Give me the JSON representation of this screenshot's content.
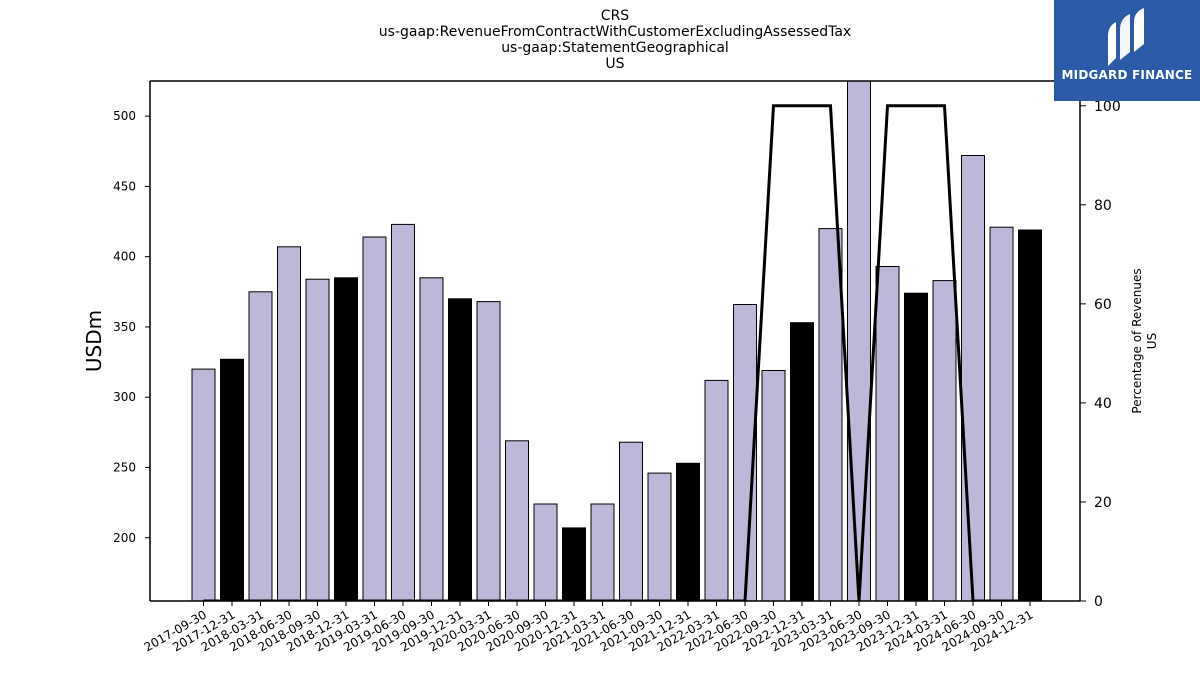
{
  "chart_data": {
    "type": "bar",
    "title_lines": [
      "CRS",
      "us-gaap:RevenueFromContractWithCustomerExcludingAssessedTax",
      "us-gaap:StatementGeographical",
      "US"
    ],
    "ylabel": "USDm",
    "y2label_lines": [
      "Percentage of Revenues",
      "US"
    ],
    "ylim": [
      155,
      525
    ],
    "yticks": [
      200,
      250,
      300,
      350,
      400,
      450,
      500
    ],
    "y2lim": [
      0,
      105
    ],
    "y2ticks": [
      0,
      20,
      40,
      60,
      80,
      100
    ],
    "categories": [
      "2017-09-30",
      "2017-12-31",
      "2018-03-31",
      "2018-06-30",
      "2018-09-30",
      "2018-12-31",
      "2019-03-31",
      "2019-06-30",
      "2019-09-30",
      "2019-12-31",
      "2020-03-31",
      "2020-06-30",
      "2020-09-30",
      "2020-12-31",
      "2021-03-31",
      "2021-06-30",
      "2021-09-30",
      "2021-12-31",
      "2022-03-31",
      "2022-06-30",
      "2022-09-30",
      "2022-12-31",
      "2023-03-31",
      "2023-06-30",
      "2023-09-30",
      "2023-12-31",
      "2024-03-31",
      "2024-06-30",
      "2024-09-30",
      "2024-12-31"
    ],
    "values": [
      320,
      327,
      375,
      407,
      384,
      385,
      414,
      423,
      385,
      370,
      368,
      269,
      224,
      207,
      224,
      268,
      246,
      253,
      312,
      366,
      319,
      353,
      420,
      528,
      393,
      374,
      383,
      472,
      421,
      419
    ],
    "bar_colors": [
      "#bcb8d9",
      "#000000",
      "#bcb8d9",
      "#bcb8d9",
      "#bcb8d9",
      "#000000",
      "#bcb8d9",
      "#bcb8d9",
      "#bcb8d9",
      "#000000",
      "#bcb8d9",
      "#bcb8d9",
      "#bcb8d9",
      "#000000",
      "#bcb8d9",
      "#bcb8d9",
      "#bcb8d9",
      "#000000",
      "#bcb8d9",
      "#bcb8d9",
      "#bcb8d9",
      "#000000",
      "#bcb8d9",
      "#bcb8d9",
      "#bcb8d9",
      "#000000",
      "#bcb8d9",
      "#bcb8d9",
      "#bcb8d9",
      "#000000"
    ],
    "line_series": {
      "axis": "right",
      "values": [
        0,
        0,
        0,
        0,
        0,
        0,
        0,
        0,
        0,
        0,
        0,
        0,
        0,
        0,
        0,
        0,
        0,
        0,
        0,
        0,
        100,
        100,
        100,
        0,
        100,
        100,
        100,
        0,
        0,
        0
      ]
    },
    "grid": false,
    "legend": "none"
  },
  "colors": {
    "light_bar": "#bcb8d9",
    "dark_bar": "#000000",
    "line": "#000000",
    "logo_bg": "#2b5aa8"
  },
  "logo": {
    "text": "MIDGARD FINANCE",
    "icon": "midgard-logo-icon"
  }
}
